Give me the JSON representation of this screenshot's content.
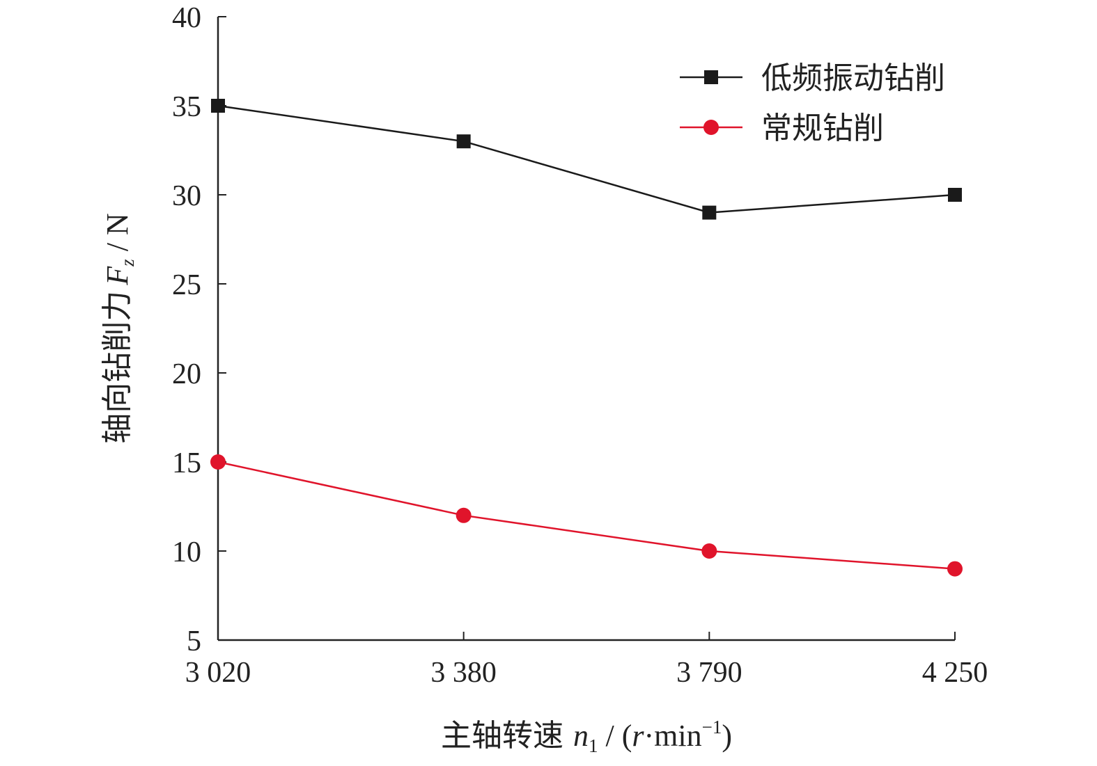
{
  "chart_data": {
    "type": "line",
    "categories": [
      "3 020",
      "3 380",
      "3 790",
      "4 250"
    ],
    "series": [
      {
        "name": "低频振动钻削",
        "values": [
          35,
          33,
          29,
          30
        ],
        "color": "#1a1a1a",
        "marker": "square"
      },
      {
        "name": "常规钻削",
        "values": [
          15,
          12,
          10,
          9
        ],
        "color": "#e0142b",
        "marker": "circle"
      }
    ],
    "ylim": [
      5,
      40
    ],
    "yticks": [
      5,
      10,
      15,
      20,
      25,
      30,
      35,
      40
    ],
    "xlabel": {
      "cjk": "主轴转速",
      "sym": "n",
      "sub": "1",
      "unit_open": " / (",
      "unit_sym": "r",
      "unit_mid": "·min",
      "unit_sup": "−1",
      "unit_close": ")"
    },
    "ylabel": {
      "cjk": "轴向钻削力",
      "sym": "F",
      "sub": "z",
      "unit": " / N"
    },
    "grid": false,
    "legend_position": "top-right"
  }
}
